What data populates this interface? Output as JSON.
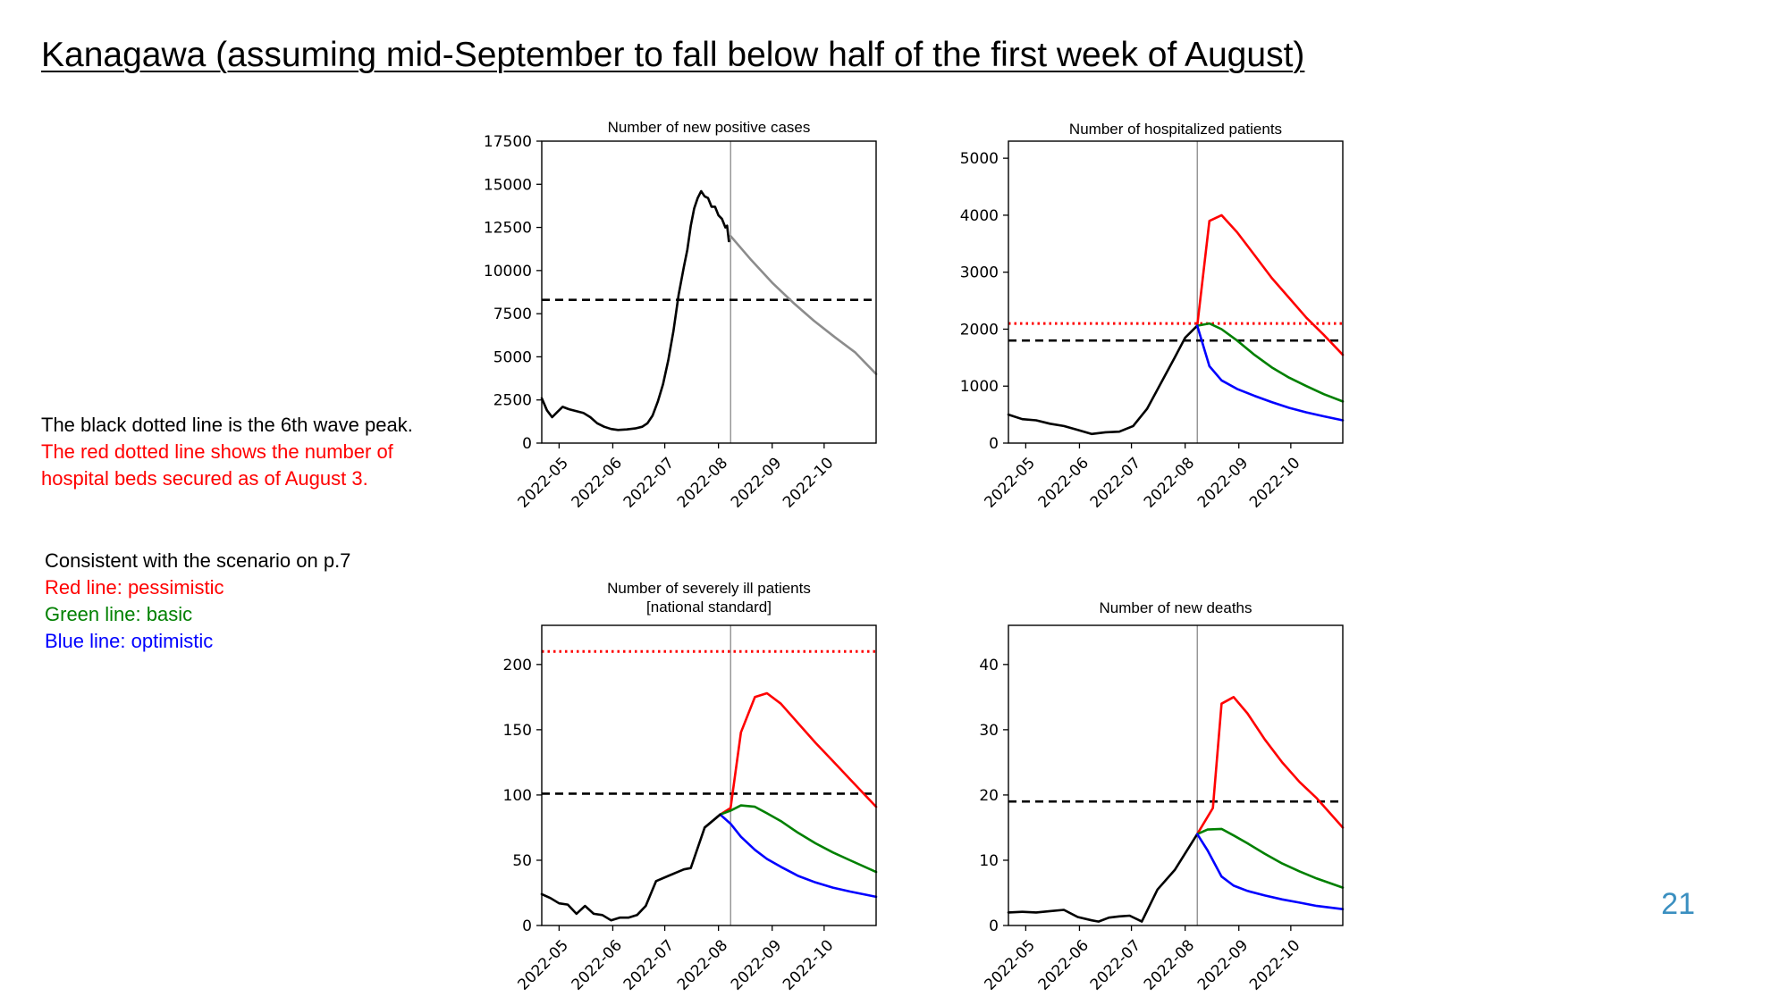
{
  "slide": {
    "title": "Kanagawa (assuming mid-September to fall below half of the first week of August)",
    "page_number": "21",
    "notes_a": [
      "The black dotted line is the 6th wave peak.",
      "The red dotted line shows the number of",
      "hospital beds secured as of August 3."
    ],
    "notes_b": [
      "Consistent with the scenario on p.7",
      "Red line: pessimistic",
      "Green line: basic",
      "Blue line: optimistic"
    ]
  },
  "colors": {
    "pessimistic": "#ff0000",
    "basic": "#008000",
    "optimistic": "#0000ff",
    "observed": "#000000",
    "projection": "#8c8c8c",
    "vline": "#808080",
    "page_number": "#3a8fc0"
  },
  "chart_data": [
    {
      "type": "line",
      "title": "Number of new positive cases",
      "x_ticks": [
        "2022-05",
        "2022-06",
        "2022-07",
        "2022-08",
        "2022-09",
        "2022-10"
      ],
      "xlim": [
        "2022-04-21",
        "2022-10-31"
      ],
      "ylim": [
        0,
        17500
      ],
      "y_ticks": [
        0,
        2500,
        5000,
        7500,
        10000,
        12500,
        15000,
        17500
      ],
      "vline": "2022-08-08",
      "hlines": [
        {
          "y": 8300,
          "style": "dashed",
          "color": "black",
          "meaning": "6th wave peak"
        }
      ],
      "series": [
        {
          "name": "",
          "color": "black",
          "points": [
            [
              "2022-04-21",
              2600
            ],
            [
              "2022-04-24",
              1900
            ],
            [
              "2022-04-27",
              1500
            ],
            [
              "2022-04-30",
              1800
            ],
            [
              "2022-05-03",
              2100
            ],
            [
              "2022-05-07",
              1950
            ],
            [
              "2022-05-11",
              1850
            ],
            [
              "2022-05-15",
              1750
            ],
            [
              "2022-05-19",
              1500
            ],
            [
              "2022-05-23",
              1150
            ],
            [
              "2022-05-27",
              950
            ],
            [
              "2022-05-31",
              820
            ],
            [
              "2022-06-04",
              760
            ],
            [
              "2022-06-09",
              790
            ],
            [
              "2022-06-14",
              850
            ],
            [
              "2022-06-18",
              950
            ],
            [
              "2022-06-21",
              1150
            ],
            [
              "2022-06-24",
              1600
            ],
            [
              "2022-06-27",
              2400
            ],
            [
              "2022-06-30",
              3400
            ],
            [
              "2022-07-03",
              4800
            ],
            [
              "2022-07-06",
              6500
            ],
            [
              "2022-07-09",
              8600
            ],
            [
              "2022-07-12",
              10200
            ],
            [
              "2022-07-14",
              11200
            ],
            [
              "2022-07-16",
              12600
            ],
            [
              "2022-07-18",
              13600
            ],
            [
              "2022-07-20",
              14200
            ],
            [
              "2022-07-22",
              14600
            ],
            [
              "2022-07-24",
              14300
            ],
            [
              "2022-07-26",
              14200
            ],
            [
              "2022-07-28",
              13700
            ],
            [
              "2022-07-30",
              13700
            ],
            [
              "2022-08-01",
              13200
            ],
            [
              "2022-08-03",
              13000
            ],
            [
              "2022-08-05",
              12500
            ],
            [
              "2022-08-06",
              12600
            ],
            [
              "2022-08-07",
              11700
            ]
          ]
        },
        {
          "name": "",
          "color": "gray",
          "points": [
            [
              "2022-08-08",
              12000
            ],
            [
              "2022-08-20",
              10600
            ],
            [
              "2022-09-01",
              9300
            ],
            [
              "2022-09-13",
              8150
            ],
            [
              "2022-09-25",
              7100
            ],
            [
              "2022-10-07",
              6150
            ],
            [
              "2022-10-19",
              5250
            ],
            [
              "2022-10-31",
              4000
            ]
          ]
        }
      ]
    },
    {
      "type": "line",
      "title": "Number of hospitalized patients",
      "x_ticks": [
        "2022-05",
        "2022-06",
        "2022-07",
        "2022-08",
        "2022-09",
        "2022-10"
      ],
      "xlim": [
        "2022-04-21",
        "2022-10-31"
      ],
      "ylim": [
        0,
        5300
      ],
      "y_ticks": [
        0,
        1000,
        2000,
        3000,
        4000,
        5000
      ],
      "vline": "2022-08-08",
      "hlines": [
        {
          "y": 2100,
          "style": "dotted",
          "color": "red",
          "meaning": "hospital beds secured as of August 3"
        },
        {
          "y": 1800,
          "style": "dashed",
          "color": "black",
          "meaning": "6th wave peak"
        }
      ],
      "series": [
        {
          "name": "",
          "color": "black",
          "points": [
            [
              "2022-04-21",
              500
            ],
            [
              "2022-04-29",
              420
            ],
            [
              "2022-05-07",
              400
            ],
            [
              "2022-05-15",
              340
            ],
            [
              "2022-05-23",
              300
            ],
            [
              "2022-05-31",
              230
            ],
            [
              "2022-06-08",
              160
            ],
            [
              "2022-06-16",
              190
            ],
            [
              "2022-06-24",
              200
            ],
            [
              "2022-07-02",
              300
            ],
            [
              "2022-07-10",
              600
            ],
            [
              "2022-07-18",
              1050
            ],
            [
              "2022-07-26",
              1500
            ],
            [
              "2022-08-01",
              1850
            ],
            [
              "2022-08-08",
              2060
            ]
          ]
        },
        {
          "name": "",
          "color": "red",
          "points": [
            [
              "2022-08-08",
              2060
            ],
            [
              "2022-08-15",
              3900
            ],
            [
              "2022-08-22",
              4000
            ],
            [
              "2022-08-31",
              3700
            ],
            [
              "2022-09-10",
              3300
            ],
            [
              "2022-09-20",
              2900
            ],
            [
              "2022-09-30",
              2550
            ],
            [
              "2022-10-10",
              2200
            ],
            [
              "2022-10-20",
              1900
            ],
            [
              "2022-10-31",
              1550
            ]
          ]
        },
        {
          "name": "",
          "color": "green",
          "points": [
            [
              "2022-08-08",
              2060
            ],
            [
              "2022-08-15",
              2100
            ],
            [
              "2022-08-22",
              2000
            ],
            [
              "2022-08-31",
              1800
            ],
            [
              "2022-09-10",
              1550
            ],
            [
              "2022-09-20",
              1330
            ],
            [
              "2022-09-30",
              1150
            ],
            [
              "2022-10-10",
              1000
            ],
            [
              "2022-10-20",
              860
            ],
            [
              "2022-10-31",
              730
            ]
          ]
        },
        {
          "name": "",
          "color": "blue",
          "points": [
            [
              "2022-08-08",
              2060
            ],
            [
              "2022-08-15",
              1350
            ],
            [
              "2022-08-22",
              1100
            ],
            [
              "2022-08-31",
              950
            ],
            [
              "2022-09-10",
              830
            ],
            [
              "2022-09-20",
              720
            ],
            [
              "2022-09-30",
              620
            ],
            [
              "2022-10-10",
              540
            ],
            [
              "2022-10-20",
              470
            ],
            [
              "2022-10-31",
              400
            ]
          ]
        }
      ]
    },
    {
      "type": "line",
      "title": "Number of severely ill patients\n[national standard]",
      "x_ticks": [
        "2022-05",
        "2022-06",
        "2022-07",
        "2022-08",
        "2022-09",
        "2022-10"
      ],
      "xlim": [
        "2022-04-21",
        "2022-10-31"
      ],
      "ylim": [
        0,
        230
      ],
      "y_ticks": [
        0,
        50,
        100,
        150,
        200
      ],
      "vline": "2022-08-08",
      "hlines": [
        {
          "y": 210,
          "style": "dotted",
          "color": "red",
          "meaning": "hospital beds secured as of August 3"
        },
        {
          "y": 101,
          "style": "dashed",
          "color": "black",
          "meaning": "6th wave peak"
        }
      ],
      "series": [
        {
          "name": "",
          "color": "black",
          "points": [
            [
              "2022-04-21",
              24
            ],
            [
              "2022-04-26",
              21
            ],
            [
              "2022-05-01",
              17
            ],
            [
              "2022-05-06",
              16
            ],
            [
              "2022-05-11",
              9
            ],
            [
              "2022-05-16",
              15
            ],
            [
              "2022-05-21",
              9
            ],
            [
              "2022-05-26",
              8
            ],
            [
              "2022-05-31",
              4
            ],
            [
              "2022-06-05",
              6
            ],
            [
              "2022-06-10",
              6
            ],
            [
              "2022-06-15",
              8
            ],
            [
              "2022-06-20",
              15
            ],
            [
              "2022-06-26",
              34
            ],
            [
              "2022-07-03",
              38
            ],
            [
              "2022-07-12",
              43
            ],
            [
              "2022-07-16",
              44
            ],
            [
              "2022-07-24",
              75
            ],
            [
              "2022-08-02",
              85
            ]
          ]
        },
        {
          "name": "",
          "color": "red",
          "points": [
            [
              "2022-08-02",
              85
            ],
            [
              "2022-08-08",
              90
            ],
            [
              "2022-08-14",
              148
            ],
            [
              "2022-08-22",
              175
            ],
            [
              "2022-08-29",
              178
            ],
            [
              "2022-09-06",
              170
            ],
            [
              "2022-09-16",
              155
            ],
            [
              "2022-09-26",
              140
            ],
            [
              "2022-10-06",
              126
            ],
            [
              "2022-10-16",
              112
            ],
            [
              "2022-10-31",
              91
            ]
          ]
        },
        {
          "name": "",
          "color": "green",
          "points": [
            [
              "2022-08-02",
              85
            ],
            [
              "2022-08-08",
              88
            ],
            [
              "2022-08-14",
              92
            ],
            [
              "2022-08-22",
              91
            ],
            [
              "2022-08-29",
              86
            ],
            [
              "2022-09-06",
              80
            ],
            [
              "2022-09-16",
              71
            ],
            [
              "2022-09-26",
              63
            ],
            [
              "2022-10-06",
              56
            ],
            [
              "2022-10-16",
              50
            ],
            [
              "2022-10-31",
              41
            ]
          ]
        },
        {
          "name": "",
          "color": "blue",
          "points": [
            [
              "2022-08-02",
              85
            ],
            [
              "2022-08-08",
              78
            ],
            [
              "2022-08-14",
              68
            ],
            [
              "2022-08-22",
              58
            ],
            [
              "2022-08-29",
              51
            ],
            [
              "2022-09-06",
              45
            ],
            [
              "2022-09-16",
              38
            ],
            [
              "2022-09-26",
              33
            ],
            [
              "2022-10-06",
              29
            ],
            [
              "2022-10-16",
              26
            ],
            [
              "2022-10-31",
              22
            ]
          ]
        },
        {
          "name": "",
          "color": "black",
          "points": [
            [
              "2022-07-24",
              75
            ],
            [
              "2022-08-02",
              85
            ]
          ]
        }
      ]
    },
    {
      "type": "line",
      "title": "Number of new deaths",
      "x_ticks": [
        "2022-05",
        "2022-06",
        "2022-07",
        "2022-08",
        "2022-09",
        "2022-10"
      ],
      "xlim": [
        "2022-04-21",
        "2022-10-31"
      ],
      "ylim": [
        0,
        46
      ],
      "y_ticks": [
        0,
        10,
        20,
        30,
        40
      ],
      "vline": "2022-08-08",
      "hlines": [
        {
          "y": 19,
          "style": "dashed",
          "color": "black",
          "meaning": "6th wave peak"
        }
      ],
      "series": [
        {
          "name": "",
          "color": "black",
          "points": [
            [
              "2022-04-21",
              2
            ],
            [
              "2022-04-29",
              2.1
            ],
            [
              "2022-05-07",
              2
            ],
            [
              "2022-05-15",
              2.2
            ],
            [
              "2022-05-23",
              2.4
            ],
            [
              "2022-05-31",
              1.3
            ],
            [
              "2022-06-08",
              0.8
            ],
            [
              "2022-06-12",
              0.6
            ],
            [
              "2022-06-18",
              1.2
            ],
            [
              "2022-06-24",
              1.4
            ],
            [
              "2022-06-30",
              1.5
            ],
            [
              "2022-07-07",
              0.6
            ],
            [
              "2022-07-16",
              5.5
            ],
            [
              "2022-07-26",
              8.5
            ],
            [
              "2022-08-08",
              14
            ]
          ]
        },
        {
          "name": "",
          "color": "red",
          "points": [
            [
              "2022-08-08",
              14
            ],
            [
              "2022-08-17",
              18
            ],
            [
              "2022-08-22",
              34
            ],
            [
              "2022-08-29",
              35
            ],
            [
              "2022-09-06",
              32.5
            ],
            [
              "2022-09-16",
              28.5
            ],
            [
              "2022-09-26",
              25
            ],
            [
              "2022-10-06",
              22
            ],
            [
              "2022-10-16",
              19.5
            ],
            [
              "2022-10-31",
              15
            ]
          ]
        },
        {
          "name": "",
          "color": "green",
          "points": [
            [
              "2022-08-08",
              14
            ],
            [
              "2022-08-14",
              14.7
            ],
            [
              "2022-08-22",
              14.8
            ],
            [
              "2022-08-29",
              13.8
            ],
            [
              "2022-09-06",
              12.6
            ],
            [
              "2022-09-16",
              11
            ],
            [
              "2022-09-26",
              9.5
            ],
            [
              "2022-10-06",
              8.3
            ],
            [
              "2022-10-16",
              7.2
            ],
            [
              "2022-10-31",
              5.8
            ]
          ]
        },
        {
          "name": "",
          "color": "blue",
          "points": [
            [
              "2022-08-08",
              14
            ],
            [
              "2022-08-14",
              11.5
            ],
            [
              "2022-08-22",
              7.5
            ],
            [
              "2022-08-29",
              6.1
            ],
            [
              "2022-09-06",
              5.3
            ],
            [
              "2022-09-16",
              4.6
            ],
            [
              "2022-09-26",
              4
            ],
            [
              "2022-10-06",
              3.5
            ],
            [
              "2022-10-16",
              3
            ],
            [
              "2022-10-31",
              2.5
            ]
          ]
        }
      ]
    }
  ]
}
